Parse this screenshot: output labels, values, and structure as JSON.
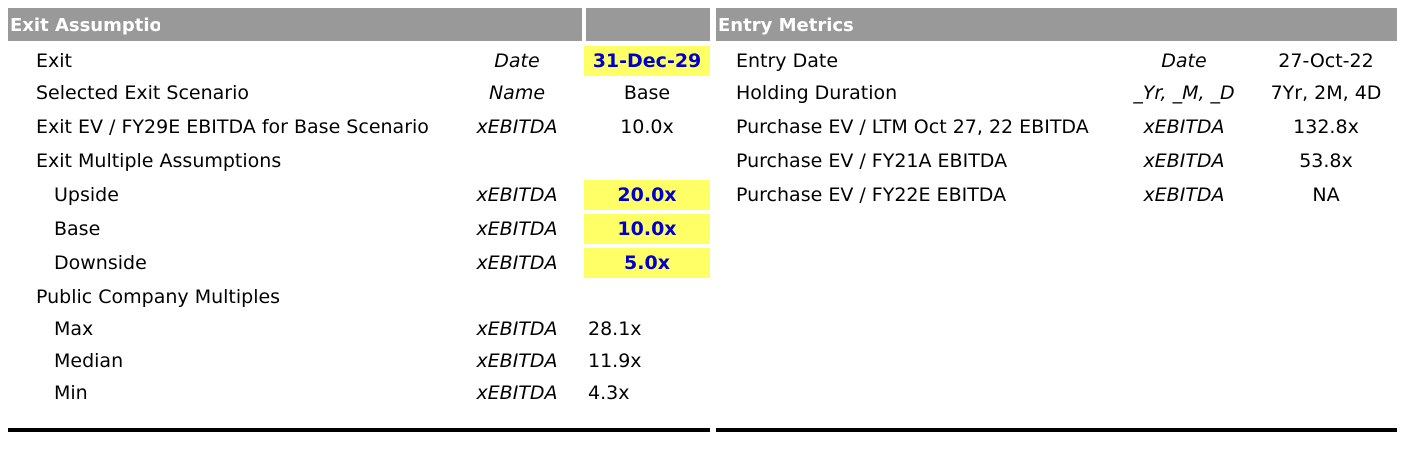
{
  "exit_panel": {
    "title": "Exit Assumptions",
    "rows": [
      {
        "label": "Exit",
        "unit": "Date",
        "value": "31-Dec-29"
      },
      {
        "label": "Selected Exit Scenario",
        "unit": "Name",
        "value": "Base"
      },
      {
        "label": "Exit EV / FY29E EBITDA for Base Scenario",
        "unit": "xEBITDA",
        "value": "10.0x"
      },
      {
        "label": "Exit Multiple Assumptions",
        "unit": "",
        "value": ""
      },
      {
        "label": "Upside",
        "unit": "xEBITDA",
        "value": "20.0x"
      },
      {
        "label": "Base",
        "unit": "xEBITDA",
        "value": "10.0x"
      },
      {
        "label": "Downside",
        "unit": "xEBITDA",
        "value": "5.0x"
      },
      {
        "label": "Public Company Multiples",
        "unit": "",
        "value": ""
      },
      {
        "label": "Max",
        "unit": "xEBITDA",
        "value": "28.1x"
      },
      {
        "label": "Median",
        "unit": "xEBITDA",
        "value": "11.9x"
      },
      {
        "label": "Min",
        "unit": "xEBITDA",
        "value": "4.3x"
      }
    ]
  },
  "entry_panel": {
    "title": "Entry Metrics",
    "rows": [
      {
        "label": "Entry Date",
        "unit": "Date",
        "value": "27-Oct-22"
      },
      {
        "label": "Holding Duration",
        "unit": "_Yr, _M, _D",
        "value": "7Yr, 2M, 4D"
      },
      {
        "label": "Purchase EV / LTM Oct 27, 22 EBITDA",
        "unit": "xEBITDA",
        "value": "132.8x"
      },
      {
        "label": "Purchase EV / FY21A EBITDA",
        "unit": "xEBITDA",
        "value": "53.8x"
      },
      {
        "label": "Purchase EV / FY22E EBITDA",
        "unit": "xEBITDA",
        "value": "NA"
      }
    ]
  },
  "colors": {
    "header_bg": "#999999",
    "input_highlight": "#ffff66",
    "input_text": "#0000cc"
  }
}
